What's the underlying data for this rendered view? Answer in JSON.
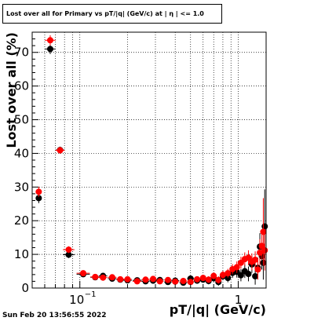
{
  "chart_data": {
    "type": "scatter",
    "title": "Lost over all for Primary vs pT/|q| (GeV/c) at | η | <= 1.0",
    "xlabel": "pT/|q| (GeV/c)",
    "ylabel": "Lost over all (%)",
    "xscale": "log",
    "xlim": [
      0.05,
      1.5
    ],
    "ylim": [
      0,
      76
    ],
    "grid": true,
    "x_ticklabels": [
      {
        "value": 0.1,
        "label": "10",
        "exp": "−1"
      },
      {
        "value": 1,
        "label": "1",
        "exp": ""
      }
    ],
    "yticks": [
      0,
      10,
      20,
      30,
      40,
      50,
      60,
      70
    ],
    "series": [
      {
        "color": "#000000",
        "points": [
          {
            "x": 0.055,
            "y": 26.7,
            "err": 1.5
          },
          {
            "x": 0.065,
            "y": 71.0,
            "err": 1.5
          },
          {
            "x": 0.075,
            "y": 41.0,
            "err": 1.0
          },
          {
            "x": 0.085,
            "y": 9.9,
            "err": 1.0
          },
          {
            "x": 0.105,
            "y": 4.1,
            "err": 0.6
          },
          {
            "x": 0.125,
            "y": 3.2,
            "err": 0.5
          },
          {
            "x": 0.14,
            "y": 3.6,
            "err": 0.5
          },
          {
            "x": 0.16,
            "y": 2.8,
            "err": 0.5
          },
          {
            "x": 0.18,
            "y": 2.5,
            "err": 0.5
          },
          {
            "x": 0.2,
            "y": 2.3,
            "err": 0.5
          },
          {
            "x": 0.23,
            "y": 2.3,
            "err": 0.5
          },
          {
            "x": 0.26,
            "y": 2.0,
            "err": 0.5
          },
          {
            "x": 0.29,
            "y": 2.2,
            "err": 0.6
          },
          {
            "x": 0.32,
            "y": 2.4,
            "err": 0.6
          },
          {
            "x": 0.36,
            "y": 1.8,
            "err": 0.6
          },
          {
            "x": 0.4,
            "y": 2.2,
            "err": 0.6
          },
          {
            "x": 0.45,
            "y": 1.6,
            "err": 0.6
          },
          {
            "x": 0.5,
            "y": 2.8,
            "err": 0.7
          },
          {
            "x": 0.55,
            "y": 2.2,
            "err": 0.8
          },
          {
            "x": 0.6,
            "y": 2.5,
            "err": 0.9
          },
          {
            "x": 0.65,
            "y": 2.1,
            "err": 1.0
          },
          {
            "x": 0.7,
            "y": 2.9,
            "err": 1.0
          },
          {
            "x": 0.75,
            "y": 1.8,
            "err": 1.1
          },
          {
            "x": 0.8,
            "y": 3.5,
            "err": 1.2
          },
          {
            "x": 0.86,
            "y": 3.0,
            "err": 1.3
          },
          {
            "x": 0.92,
            "y": 4.5,
            "err": 1.5
          },
          {
            "x": 0.98,
            "y": 4.8,
            "err": 1.7
          },
          {
            "x": 1.04,
            "y": 3.8,
            "err": 1.8
          },
          {
            "x": 1.1,
            "y": 5.0,
            "err": 2.0
          },
          {
            "x": 1.16,
            "y": 4.2,
            "err": 2.2
          },
          {
            "x": 1.22,
            "y": 7.0,
            "err": 2.5
          },
          {
            "x": 1.28,
            "y": 3.5,
            "err": 2.5
          },
          {
            "x": 1.33,
            "y": 6.0,
            "err": 3.0
          },
          {
            "x": 1.37,
            "y": 12.3,
            "err": 4.0
          },
          {
            "x": 1.41,
            "y": 9.5,
            "err": 4.0
          },
          {
            "x": 1.44,
            "y": 7.5,
            "err": 5.0
          },
          {
            "x": 1.47,
            "y": 18.3,
            "err": 11.0
          }
        ]
      },
      {
        "color": "#ff0000",
        "points": [
          {
            "x": 0.055,
            "y": 28.6,
            "err": 1.5
          },
          {
            "x": 0.065,
            "y": 73.6,
            "err": 1.5
          },
          {
            "x": 0.075,
            "y": 40.9,
            "err": 1.0
          },
          {
            "x": 0.085,
            "y": 11.4,
            "err": 1.0
          },
          {
            "x": 0.105,
            "y": 4.4,
            "err": 0.6
          },
          {
            "x": 0.125,
            "y": 3.3,
            "err": 0.5
          },
          {
            "x": 0.14,
            "y": 3.1,
            "err": 0.5
          },
          {
            "x": 0.16,
            "y": 3.2,
            "err": 0.5
          },
          {
            "x": 0.18,
            "y": 2.6,
            "err": 0.5
          },
          {
            "x": 0.2,
            "y": 2.6,
            "err": 0.5
          },
          {
            "x": 0.23,
            "y": 2.0,
            "err": 0.5
          },
          {
            "x": 0.26,
            "y": 2.5,
            "err": 0.5
          },
          {
            "x": 0.29,
            "y": 2.7,
            "err": 0.6
          },
          {
            "x": 0.32,
            "y": 2.0,
            "err": 0.6
          },
          {
            "x": 0.36,
            "y": 2.4,
            "err": 0.6
          },
          {
            "x": 0.4,
            "y": 1.9,
            "err": 0.6
          },
          {
            "x": 0.45,
            "y": 2.1,
            "err": 0.6
          },
          {
            "x": 0.5,
            "y": 1.8,
            "err": 0.7
          },
          {
            "x": 0.55,
            "y": 2.6,
            "err": 0.8
          },
          {
            "x": 0.6,
            "y": 3.0,
            "err": 0.9
          },
          {
            "x": 0.65,
            "y": 2.5,
            "err": 1.0
          },
          {
            "x": 0.7,
            "y": 3.6,
            "err": 1.0
          },
          {
            "x": 0.75,
            "y": 2.4,
            "err": 1.1
          },
          {
            "x": 0.8,
            "y": 3.9,
            "err": 1.2
          },
          {
            "x": 0.86,
            "y": 4.4,
            "err": 1.3
          },
          {
            "x": 0.92,
            "y": 5.6,
            "err": 1.5
          },
          {
            "x": 0.98,
            "y": 6.2,
            "err": 1.7
          },
          {
            "x": 1.04,
            "y": 7.5,
            "err": 1.8
          },
          {
            "x": 1.1,
            "y": 8.6,
            "err": 2.0
          },
          {
            "x": 1.16,
            "y": 9.0,
            "err": 2.2
          },
          {
            "x": 1.22,
            "y": 7.8,
            "err": 2.5
          },
          {
            "x": 1.28,
            "y": 8.4,
            "err": 2.5
          },
          {
            "x": 1.33,
            "y": 5.5,
            "err": 3.0
          },
          {
            "x": 1.37,
            "y": 10.5,
            "err": 4.0
          },
          {
            "x": 1.41,
            "y": 12.5,
            "err": 4.0
          },
          {
            "x": 1.44,
            "y": 16.7,
            "err": 10.0
          },
          {
            "x": 1.47,
            "y": 11.2,
            "err": 6.0
          }
        ]
      }
    ]
  },
  "footer": {
    "timestamp": "Sun Feb 20 13:56:55 2022"
  }
}
